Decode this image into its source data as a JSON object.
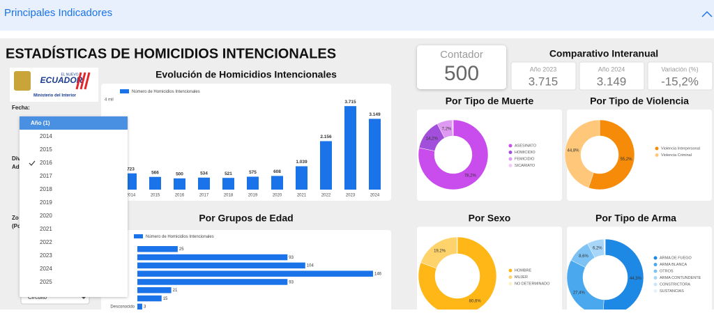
{
  "header": {
    "title": "Principales Indicadores"
  },
  "title": "ESTADÍSTICAS DE HOMICIDIOS INTENCIONALES",
  "logo": {
    "brand_top": "EL NUEVO",
    "brand": "ECUADOR",
    "ministry": "Ministerio del Interior"
  },
  "filters": {
    "fecha": "Fecha:",
    "div": "Div",
    "ad": "Ad",
    "zo": "Zo",
    "po": "(Po",
    "circuito": "Circuito"
  },
  "dropdown": {
    "header": "Año (1)",
    "items": [
      "2014",
      "2015",
      "2016",
      "2017",
      "2018",
      "2019",
      "2020",
      "2021",
      "2022",
      "2023",
      "2024",
      "2025"
    ],
    "selected": 2
  },
  "counter": {
    "label": "Contador",
    "value": "500"
  },
  "comparison": {
    "title": "Comparativo Interanual",
    "items": [
      {
        "label": "Año 2023",
        "value": "3.715"
      },
      {
        "label": "Año 2024",
        "value": "3.149"
      },
      {
        "label": "Variación (%)",
        "value": "-15,2%"
      }
    ]
  },
  "chart_data": [
    {
      "type": "bar",
      "title": "Evolución de Homicidios Intencionales",
      "legend": "Número de Homicidios Intencionales",
      "color": "#1a73e8",
      "categories": [
        "2014",
        "2015",
        "2016",
        "2017",
        "2018",
        "2019",
        "2020",
        "2021",
        "2022",
        "2023",
        "2024"
      ],
      "values": [
        723,
        566,
        500,
        534,
        521,
        575,
        608,
        1039,
        2156,
        3715,
        3149
      ],
      "value_labels": [
        "723",
        "566",
        "500",
        "534",
        "521",
        "575",
        "608",
        "1.039",
        "2.156",
        "3.715",
        "3.149"
      ],
      "ylim": [
        0,
        4000
      ],
      "yticks": [
        {
          "value": 4000,
          "label": "4 mil"
        }
      ]
    },
    {
      "type": "barh",
      "title": "Por Grupos de Edad",
      "legend": "Número de Homicidios Intencionales",
      "color": "#1a73e8",
      "categories": [
        null,
        null,
        null,
        null,
        null,
        null,
        null,
        "Desconocido"
      ],
      "values": [
        25,
        93,
        104,
        146,
        93,
        21,
        15,
        3
      ]
    },
    {
      "type": "pie",
      "title": "Por Tipo de Muerte",
      "categories": [
        "ASESINATO",
        "HOMICIDIO",
        "FEMICIDIO",
        "SICARIATO"
      ],
      "values": [
        78.2,
        14.2,
        7.2,
        0.4
      ],
      "value_labels": [
        "78,2%",
        "14,2%",
        "7,2%",
        null
      ],
      "colors": [
        "#c94cec",
        "#a24fdc",
        "#de9af2",
        "#f2c8f6"
      ]
    },
    {
      "type": "pie",
      "title": "Por Tipo de Violencia",
      "categories": [
        "Violencia Interpersonal",
        "Violencia Criminal"
      ],
      "values": [
        55.2,
        44.8
      ],
      "value_labels": [
        "55,2%",
        "44,8%"
      ],
      "colors": [
        "#f68b0a",
        "#ffc779"
      ]
    },
    {
      "type": "pie",
      "title": "Por Sexo",
      "categories": [
        "HOMBRE",
        "MUJER",
        "NO DETERMINADO"
      ],
      "values": [
        80.6,
        19.2,
        0.2
      ],
      "value_labels": [
        "80,6%",
        "19,2%",
        null
      ],
      "colors": [
        "#ffb717",
        "#ffd36b",
        "#fff0c4"
      ]
    },
    {
      "type": "pie",
      "title": "Por Tipo de Arma",
      "categories": [
        "ARMA DE FUEGO",
        "ARMA BLANCA",
        "OTROS",
        "ARMA CONTUNDENTE",
        "CONSTRICTORA",
        "SUSTANCIAS"
      ],
      "values": [
        44.3,
        27.4,
        8.6,
        6.2,
        0.3,
        0.2
      ],
      "value_labels": [
        "44,3%",
        "27,4%",
        "8,6%",
        "6,2%",
        null,
        null
      ],
      "colors": [
        "#1e88e5",
        "#4aa8ee",
        "#7cc2f4",
        "#a8d6f8",
        "#c9e6fb",
        "#e3f2fd"
      ]
    }
  ]
}
